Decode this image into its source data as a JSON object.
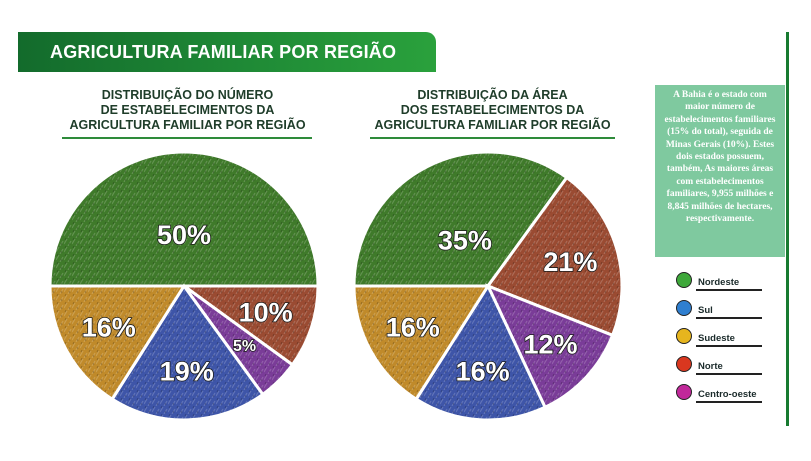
{
  "banner": {
    "title": "AGRICULTURA FAMILIAR POR REGIÃO"
  },
  "info_text": "A Bahia é o estado com maior número de estabelecimentos familiares (15% do total), seguida de Minas Gerais (10%). Estes dois estados possuem, também, As maiores áreas com estabelecimentos familiares, 9,955 milhões e 8,845 milhões de hectares, respectivamente.",
  "legend": [
    {
      "label": "Nordeste",
      "color": "#3ea83a"
    },
    {
      "label": "Sul",
      "color": "#2f7fd0"
    },
    {
      "label": "Sudeste",
      "color": "#e6b51e"
    },
    {
      "label": "Norte",
      "color": "#d9371f"
    },
    {
      "label": "Centro-oeste",
      "color": "#c1289a"
    }
  ],
  "chart_data": [
    {
      "type": "pie",
      "title": "DISTRIBUIÇÃO DO NÚMERO\nDE ESTABELECIMENTOS DA\nAGRICULTURA FAMILIAR POR REGIÃO",
      "labels": [
        "Nordeste",
        "Norte",
        "Centro-oeste",
        "Sul",
        "Sudeste"
      ],
      "values": [
        50,
        10,
        5,
        19,
        16
      ],
      "value_labels": [
        "50%",
        "10%",
        "5%",
        "19%",
        "16%"
      ],
      "colors": [
        "#3f7a2a",
        "#9a4b32",
        "#7a3c98",
        "#3e55a8",
        "#c08a2a"
      ]
    },
    {
      "type": "pie",
      "title": "DISTRIBUIÇÃO DA ÁREA\nDOS ESTABELECIMENTOS DA\nAGRICULTURA FAMILIAR POR REGIÃO",
      "labels": [
        "Nordeste",
        "Norte",
        "Centro-oeste",
        "Sul",
        "Sudeste"
      ],
      "values": [
        35,
        21,
        12,
        16,
        16
      ],
      "value_labels": [
        "35%",
        "21%",
        "12%",
        "16%",
        "16%"
      ],
      "colors": [
        "#3f7a2a",
        "#9a4b32",
        "#7a3c98",
        "#3e55a8",
        "#c08a2a"
      ]
    }
  ]
}
